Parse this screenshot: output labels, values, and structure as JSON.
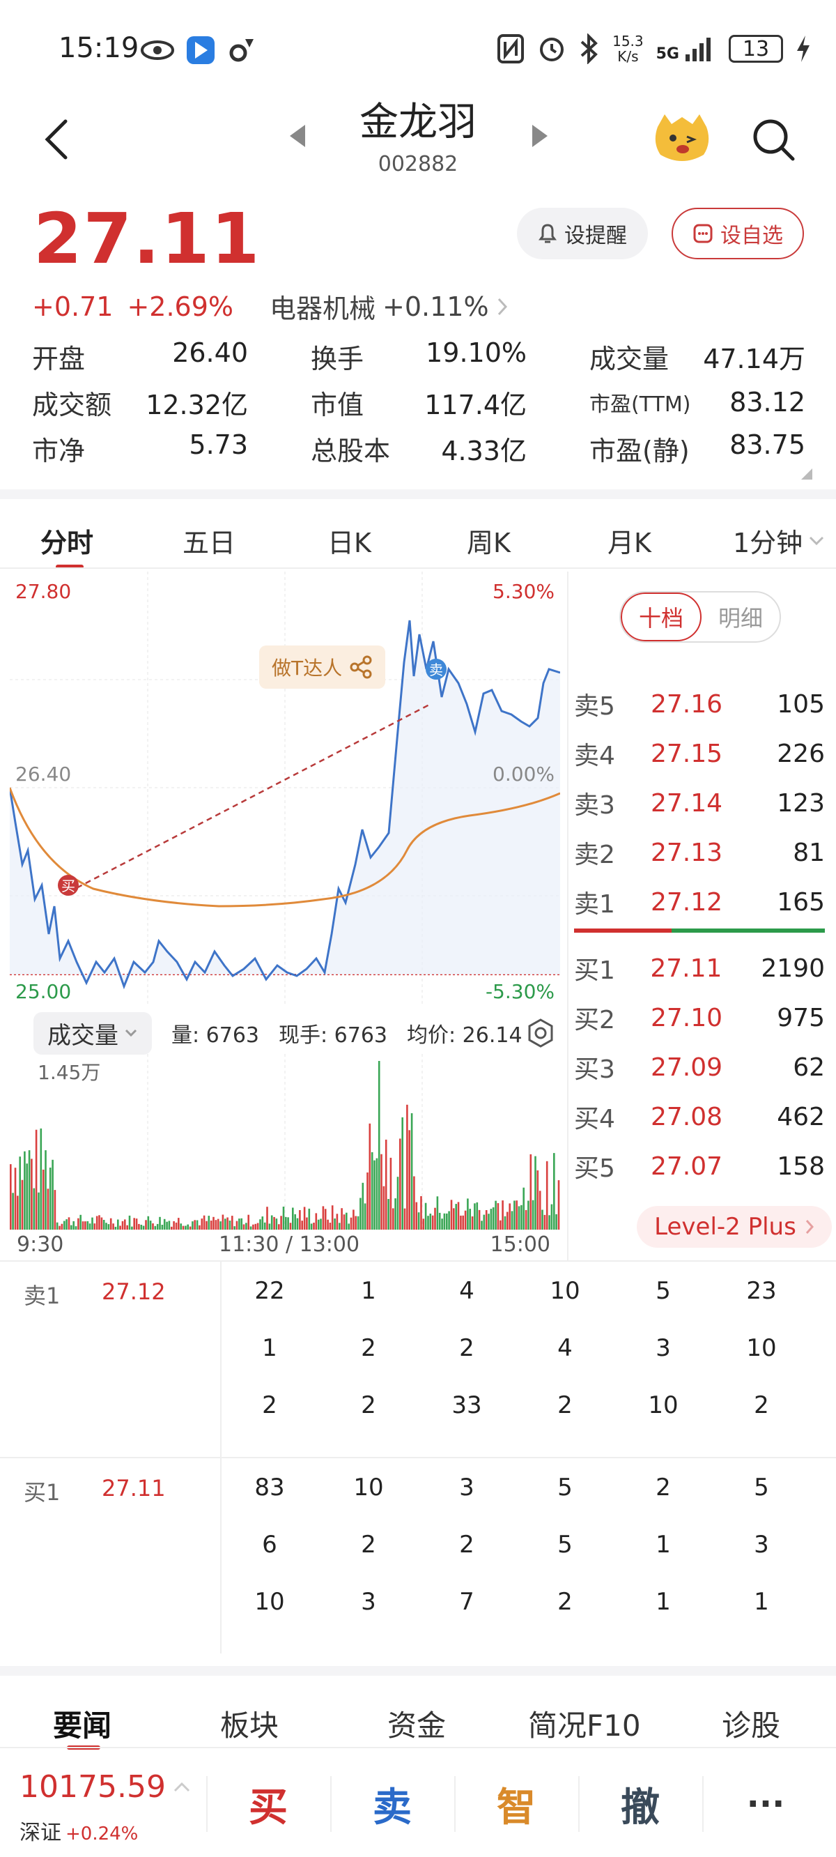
{
  "status": {
    "time": "15:19",
    "net_speed_top": "15.3",
    "net_speed_bottom": "K/s",
    "network": "5G",
    "battery": "13"
  },
  "header": {
    "name": "金龙羽",
    "code": "002882"
  },
  "quote": {
    "price": "27.11",
    "change": "+0.71",
    "change_pct": "+2.69%",
    "industry": "电器机械",
    "industry_change": "+0.11%",
    "alert_label": "设提醒",
    "watch_label": "设自选"
  },
  "stats": [
    [
      {
        "label": "开盘",
        "value": "26.40"
      },
      {
        "label": "换手",
        "value": "19.10%"
      },
      {
        "label": "成交量",
        "value": "47.14万"
      }
    ],
    [
      {
        "label": "成交额",
        "value": "12.32亿"
      },
      {
        "label": "市值",
        "value": "117.4亿"
      },
      {
        "label": "市盈(TTM)",
        "value": "83.12"
      }
    ],
    [
      {
        "label": "市净",
        "value": "5.73"
      },
      {
        "label": "总股本",
        "value": "4.33亿"
      },
      {
        "label": "市盈(静)",
        "value": "83.75"
      }
    ]
  ],
  "tabs": [
    "分时",
    "五日",
    "日K",
    "周K",
    "月K",
    "1分钟"
  ],
  "chart": {
    "y_top": "27.80",
    "y_mid": "26.40",
    "y_bot": "25.00",
    "pct_top": "5.30%",
    "pct_mid": "0.00%",
    "pct_bot": "-5.30%",
    "badge": "做T达人",
    "buy_marker": "买",
    "sell_marker": "卖",
    "vol_select": "成交量",
    "vol_info_qty": "量: 6763",
    "vol_info_now": "现手: 6763",
    "vol_info_avg": "均价: 26.14",
    "vol_max": "1.45万",
    "time_start": "9:30",
    "time_mid": "11:30 / 13:00",
    "time_end": "15:00"
  },
  "orderbook": {
    "toggle_on": "十档",
    "toggle_off": "明细",
    "asks": [
      {
        "label": "卖5",
        "price": "27.16",
        "vol": "105"
      },
      {
        "label": "卖4",
        "price": "27.15",
        "vol": "226"
      },
      {
        "label": "卖3",
        "price": "27.14",
        "vol": "123"
      },
      {
        "label": "卖2",
        "price": "27.13",
        "vol": "81"
      },
      {
        "label": "卖1",
        "price": "27.12",
        "vol": "165"
      }
    ],
    "bids": [
      {
        "label": "买1",
        "price": "27.11",
        "vol": "2190"
      },
      {
        "label": "买2",
        "price": "27.10",
        "vol": "975"
      },
      {
        "label": "买3",
        "price": "27.09",
        "vol": "62"
      },
      {
        "label": "买4",
        "price": "27.08",
        "vol": "462"
      },
      {
        "label": "买5",
        "price": "27.07",
        "vol": "158"
      }
    ],
    "level2": "Level-2 Plus"
  },
  "queues": [
    {
      "label": "卖1",
      "price": "27.12",
      "rows": [
        [
          "22",
          "1",
          "4",
          "10",
          "5",
          "23"
        ],
        [
          "1",
          "2",
          "2",
          "4",
          "3",
          "10"
        ],
        [
          "2",
          "2",
          "33",
          "2",
          "10",
          "2"
        ]
      ]
    },
    {
      "label": "买1",
      "price": "27.11",
      "rows": [
        [
          "83",
          "10",
          "3",
          "5",
          "2",
          "5"
        ],
        [
          "6",
          "2",
          "2",
          "5",
          "1",
          "3"
        ],
        [
          "10",
          "3",
          "7",
          "2",
          "1",
          "1"
        ]
      ]
    }
  ],
  "news_tabs": [
    "要闻",
    "板块",
    "资金",
    "简况F10",
    "诊股"
  ],
  "trade_bar": {
    "index_value": "10175.59",
    "index_name": "深证",
    "index_change": "+0.24%",
    "buy": "买",
    "sell": "卖",
    "smart": "智",
    "cancel": "撤",
    "more": "···"
  },
  "colors": {
    "up": "#d0302f",
    "down": "#2c9a4a",
    "avg_line": "#e08a3a",
    "price_line": "#3e74c8"
  }
}
